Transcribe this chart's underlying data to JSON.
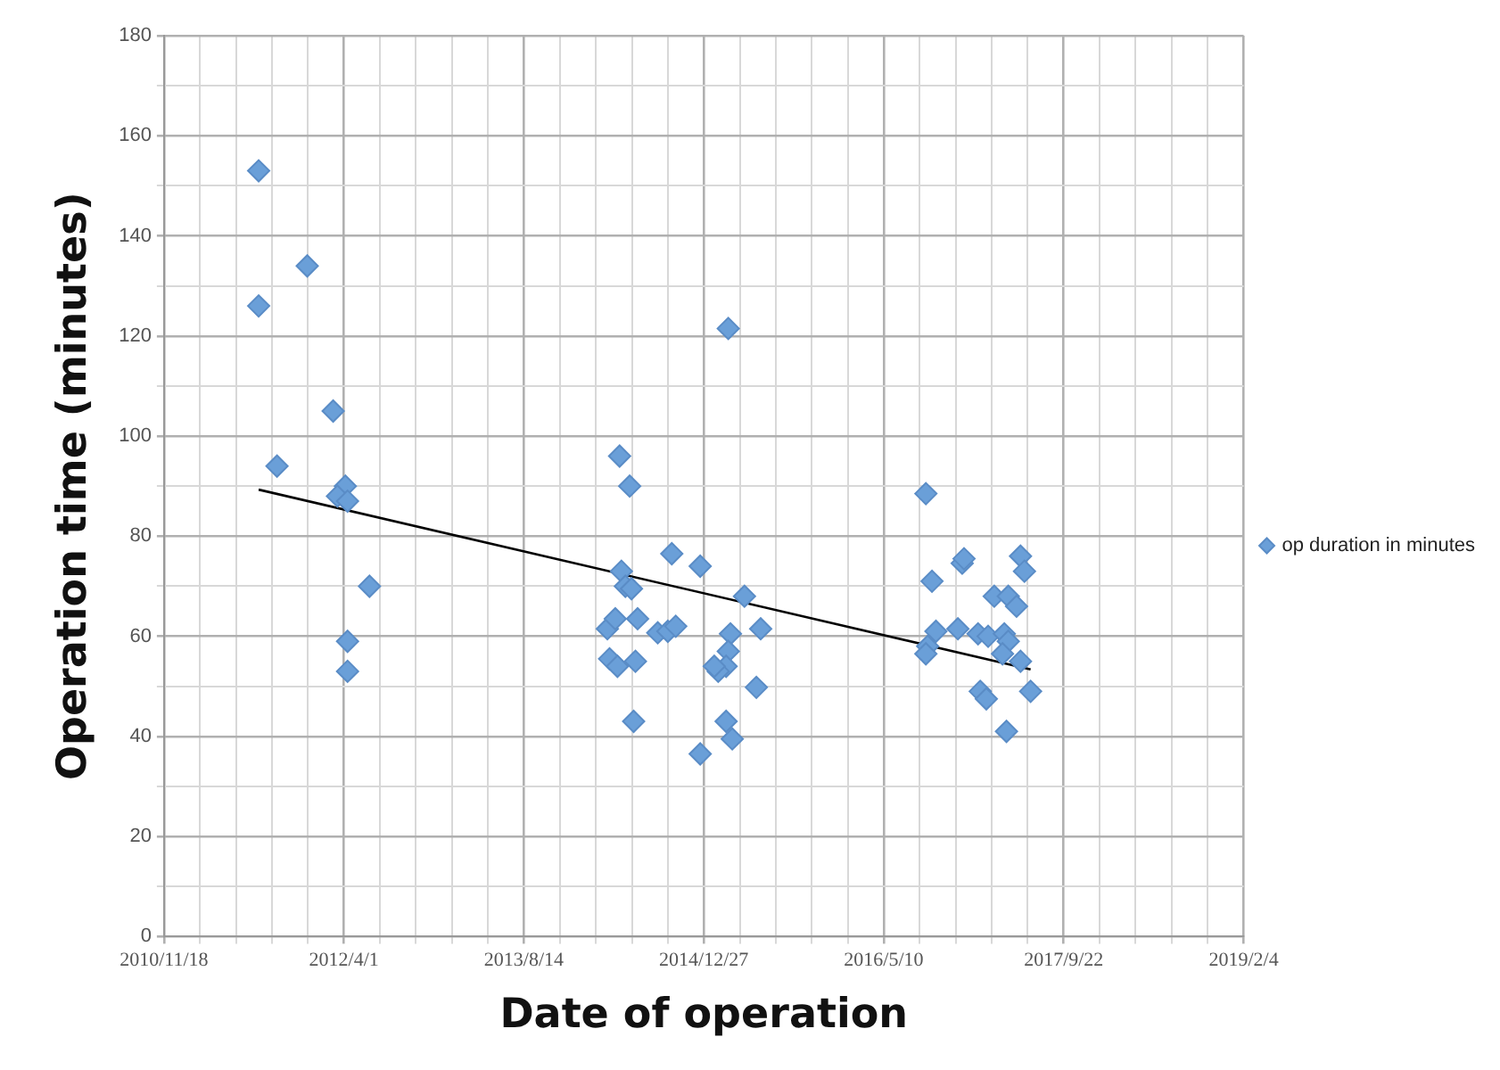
{
  "chart_data": {
    "type": "scatter",
    "xlabel": "Date of operation",
    "ylabel": "Operation time (minutes)",
    "legend": "right",
    "marker": "diamond",
    "grid": true,
    "xlim": [
      "2010-11-18",
      "2019-02-04"
    ],
    "xticks": [
      {
        "value": "2010-11-18",
        "label": "2010/11/18"
      },
      {
        "value": "2011-02-26",
        "label": null
      },
      {
        "value": "2011-06-06",
        "label": null
      },
      {
        "value": "2011-09-14",
        "label": null
      },
      {
        "value": "2011-12-23",
        "label": null
      },
      {
        "value": "2012-04-01",
        "label": "2012/4/1"
      },
      {
        "value": "2012-07-10",
        "label": null
      },
      {
        "value": "2012-10-18",
        "label": null
      },
      {
        "value": "2013-01-26",
        "label": null
      },
      {
        "value": "2013-05-06",
        "label": null
      },
      {
        "value": "2013-08-14",
        "label": "2013/8/14"
      },
      {
        "value": "2013-11-22",
        "label": null
      },
      {
        "value": "2014-03-02",
        "label": null
      },
      {
        "value": "2014-06-10",
        "label": null
      },
      {
        "value": "2014-09-18",
        "label": null
      },
      {
        "value": "2014-12-27",
        "label": "2014/12/27"
      },
      {
        "value": "2015-04-06",
        "label": null
      },
      {
        "value": "2015-07-15",
        "label": null
      },
      {
        "value": "2015-10-23",
        "label": null
      },
      {
        "value": "2016-01-31",
        "label": null
      },
      {
        "value": "2016-05-10",
        "label": "2016/5/10"
      },
      {
        "value": "2016-08-18",
        "label": null
      },
      {
        "value": "2016-11-26",
        "label": null
      },
      {
        "value": "2017-03-06",
        "label": null
      },
      {
        "value": "2017-06-14",
        "label": null
      },
      {
        "value": "2017-09-22",
        "label": "2017/9/22"
      },
      {
        "value": "2017-12-31",
        "label": null
      },
      {
        "value": "2018-04-10",
        "label": null
      },
      {
        "value": "2018-07-19",
        "label": null
      },
      {
        "value": "2018-10-27",
        "label": null
      },
      {
        "value": "2019-02-04",
        "label": "2019/2/4"
      }
    ],
    "ylim": [
      0,
      180
    ],
    "yticks": [
      0,
      {
        "value": 10,
        "label": null
      },
      20,
      {
        "value": 30,
        "label": null
      },
      40,
      {
        "value": 50,
        "label": null
      },
      60,
      {
        "value": 70,
        "label": null
      },
      80,
      {
        "value": 90,
        "label": null
      },
      100,
      {
        "value": 110,
        "label": null
      },
      120,
      {
        "value": 130,
        "label": null
      },
      140,
      {
        "value": 150,
        "label": null
      },
      160,
      {
        "value": 170,
        "label": null
      },
      180
    ],
    "series": [
      {
        "name": "op duration in minutes",
        "color": "#6a9fd8",
        "x": [
          "2011-08-08",
          "2011-08-08",
          "2011-12-21",
          "2011-09-28",
          "2012-03-02",
          "2012-04-05",
          "2012-03-14",
          "2012-04-11",
          "2012-06-11",
          "2012-04-11",
          "2012-04-11",
          "2014-05-07",
          "2014-06-04",
          "2015-03-05",
          "2014-09-29",
          "2014-12-17",
          "2014-05-12",
          "2014-05-23",
          "2014-06-09",
          "2015-04-19",
          "2014-04-03",
          "2014-04-25",
          "2014-06-26",
          "2014-08-21",
          "2014-09-18",
          "2014-10-10",
          "2015-06-03",
          "2015-03-11",
          "2014-04-09",
          "2014-05-01",
          "2014-06-20",
          "2015-03-05",
          "2015-02-27",
          "2015-02-05",
          "2015-01-25",
          "2015-05-22",
          "2014-06-15",
          "2015-02-27",
          "2015-03-16",
          "2014-12-17",
          "2016-09-04",
          "2016-09-21",
          "2016-12-14",
          "2016-12-19",
          "2017-05-25",
          "2017-06-05",
          "2017-03-13",
          "2017-04-21",
          "2017-05-14",
          "2016-10-02",
          "2016-12-02",
          "2016-09-09",
          "2016-09-04",
          "2017-01-27",
          "2017-02-24",
          "2017-04-10",
          "2017-04-21",
          "2017-04-05",
          "2017-05-25",
          "2017-02-02",
          "2017-02-19",
          "2017-06-22",
          "2017-04-16"
        ],
        "values": [
          153,
          126,
          134,
          94,
          105,
          90,
          88,
          87,
          70,
          59,
          53,
          96,
          90,
          121.5,
          76.5,
          74,
          73,
          70,
          69.5,
          68,
          61.5,
          63.5,
          63.5,
          60.7,
          61,
          62,
          61.5,
          60.5,
          55.5,
          54,
          55,
          57,
          54,
          53,
          54,
          49.8,
          43,
          43,
          39.5,
          36.5,
          88.5,
          71,
          74.6,
          75.5,
          76,
          73,
          68,
          68,
          66,
          61,
          61.5,
          58,
          56.5,
          60.5,
          60,
          60.5,
          59,
          56.5,
          55,
          49,
          47.5,
          49,
          41
        ]
      },
      {
        "type": "line",
        "color": "#000000",
        "marker": "none",
        "x": [
          "2011-08-08",
          "2017-06-22"
        ],
        "values": [
          89.3,
          53.4
        ]
      }
    ]
  }
}
